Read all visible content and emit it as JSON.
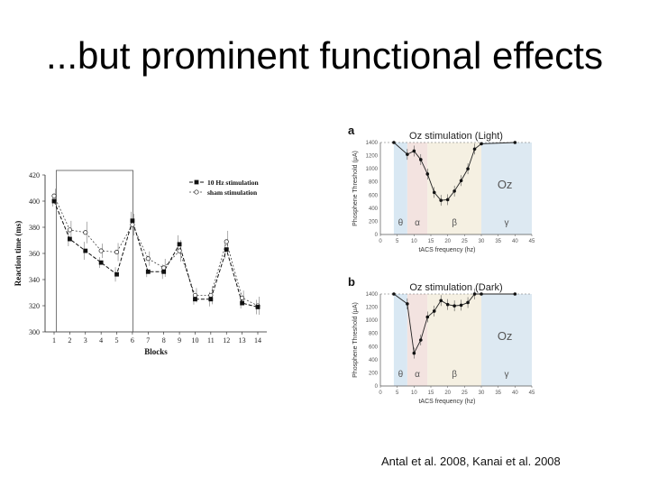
{
  "slide": {
    "title": "...but prominent functional effects",
    "citation": "Antal et al. 2008, Kanai et al. 2008"
  },
  "chart_data": [
    {
      "type": "line",
      "xlabel": "Blocks",
      "ylabel": "Reaction time (ms)",
      "ylim": [
        300,
        420
      ],
      "yticks": [
        300,
        320,
        340,
        360,
        380,
        400,
        420
      ],
      "xticks": [
        1,
        2,
        3,
        4,
        5,
        6,
        7,
        8,
        9,
        10,
        11,
        12,
        13,
        14
      ],
      "highlighted_blocks": [
        2,
        5
      ],
      "legend_placement": "top-right",
      "x": [
        1,
        2,
        3,
        4,
        5,
        6,
        7,
        8,
        9,
        10,
        11,
        12,
        13,
        14
      ],
      "series": [
        {
          "name": "10 Hz stimulation",
          "marker": "square-filled",
          "values": [
            400,
            371,
            362,
            353,
            344,
            385,
            346,
            346,
            367,
            325,
            325,
            363,
            322,
            319
          ]
        },
        {
          "name": "sham stimulation",
          "marker": "diamond-open",
          "values": [
            404,
            378,
            376,
            362,
            361,
            382,
            356,
            349,
            362,
            328,
            328,
            369,
            326,
            320
          ]
        }
      ]
    },
    {
      "type": "line",
      "panel": "a",
      "title": "Oz stimulation (Light)",
      "xlabel": "tACS frequency (hz)",
      "ylabel": "Phosphene Threshold (μA)",
      "xlim": [
        0,
        45
      ],
      "xticks": [
        0,
        5,
        10,
        15,
        20,
        25,
        30,
        35,
        40,
        45
      ],
      "ylim": [
        0,
        1400
      ],
      "yticks": [
        0,
        200,
        400,
        600,
        800,
        1000,
        1200,
        1400
      ],
      "bands": [
        "θ",
        "α",
        "β",
        "γ"
      ],
      "band_ranges": [
        [
          4,
          8
        ],
        [
          8,
          14
        ],
        [
          14,
          30
        ],
        [
          30,
          45
        ]
      ],
      "annotation": "Oz",
      "x": [
        4,
        8,
        10,
        12,
        14,
        16,
        18,
        20,
        22,
        24,
        26,
        28,
        30,
        40
      ],
      "values": [
        1400,
        1220,
        1270,
        1140,
        920,
        640,
        520,
        530,
        660,
        820,
        1000,
        1300,
        1380,
        1400
      ]
    },
    {
      "type": "line",
      "panel": "b",
      "title": "Oz stimulation (Dark)",
      "xlabel": "tACS frequency (hz)",
      "ylabel": "Phosphene Threshold (μA)",
      "xlim": [
        0,
        45
      ],
      "xticks": [
        0,
        5,
        10,
        15,
        20,
        25,
        30,
        35,
        40,
        45
      ],
      "ylim": [
        0,
        1400
      ],
      "yticks": [
        0,
        200,
        400,
        600,
        800,
        1000,
        1200,
        1400
      ],
      "bands": [
        "θ",
        "α",
        "β",
        "γ"
      ],
      "band_ranges": [
        [
          4,
          8
        ],
        [
          8,
          14
        ],
        [
          14,
          30
        ],
        [
          30,
          45
        ]
      ],
      "annotation": "Oz",
      "x": [
        4,
        8,
        10,
        12,
        14,
        16,
        18,
        20,
        22,
        24,
        26,
        28,
        30,
        40
      ],
      "values": [
        1400,
        1250,
        500,
        700,
        1050,
        1140,
        1300,
        1240,
        1220,
        1230,
        1270,
        1400,
        1400,
        1400
      ]
    }
  ]
}
